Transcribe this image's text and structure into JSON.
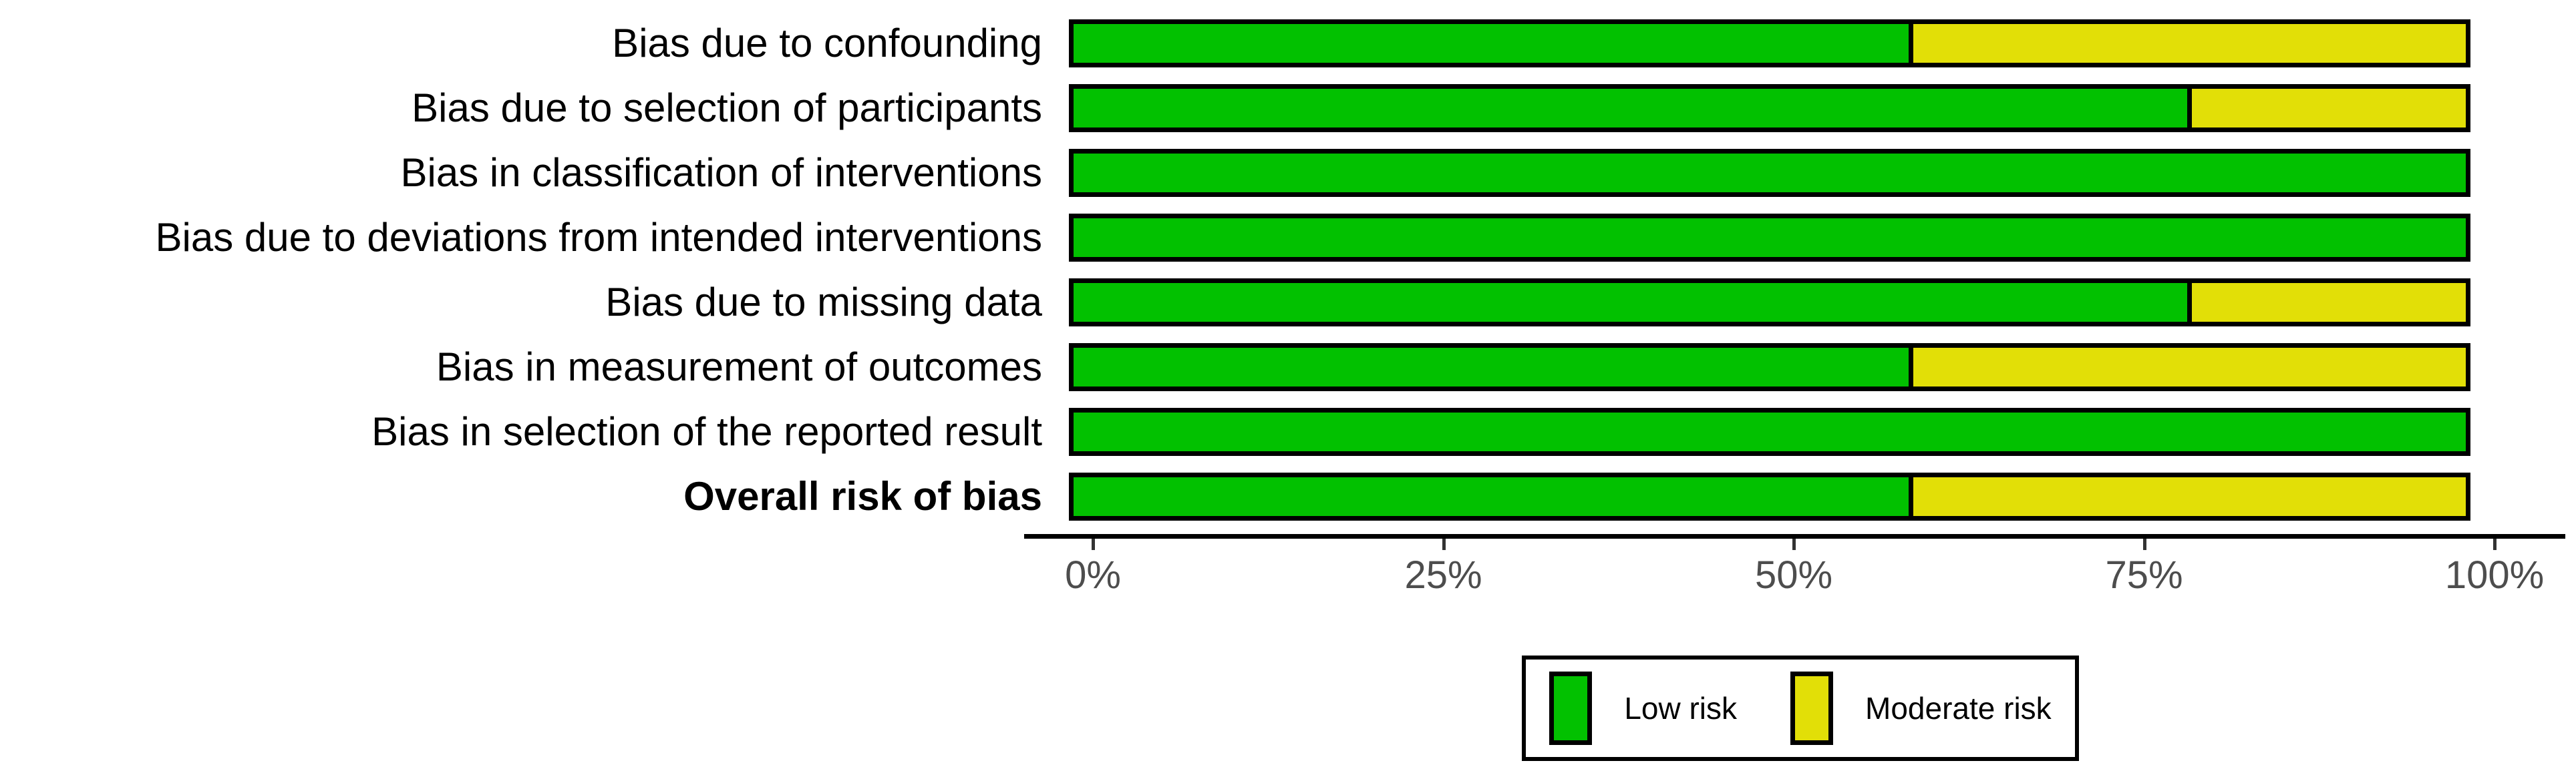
{
  "figure": {
    "background_color": "#FFFFFF",
    "axis_line_color": "#000000",
    "tick_mark_color": "#333333",
    "tick_label_color": "#4D4D4D",
    "bar_border_color": "#000000"
  },
  "chart_data": {
    "type": "bar",
    "stacked": true,
    "orientation": "horizontal",
    "title": "",
    "xlabel": "",
    "ylabel": "",
    "grid": false,
    "categories": [
      {
        "label": "Bias due to confounding",
        "bold": false
      },
      {
        "label": "Bias due to selection of participants",
        "bold": false
      },
      {
        "label": "Bias in classification of interventions",
        "bold": false
      },
      {
        "label": "Bias due to deviations from intended interventions",
        "bold": false
      },
      {
        "label": "Bias due to missing data",
        "bold": false
      },
      {
        "label": "Bias in measurement of outcomes",
        "bold": false
      },
      {
        "label": "Bias in selection of the reported result",
        "bold": false
      },
      {
        "label": "Overall risk of bias",
        "bold": true
      }
    ],
    "series": [
      {
        "name": "Low risk",
        "color": "#02C100",
        "values": [
          60,
          80,
          100,
          100,
          80,
          60,
          100,
          60
        ]
      },
      {
        "name": "Moderate risk",
        "color": "#E2DF07",
        "values": [
          40,
          20,
          0,
          0,
          20,
          40,
          0,
          40
        ]
      }
    ],
    "x_axis": {
      "range": [
        0,
        100
      ],
      "ticks": [
        {
          "value": 0,
          "label": "0%"
        },
        {
          "value": 25,
          "label": "25%"
        },
        {
          "value": 50,
          "label": "50%"
        },
        {
          "value": 75,
          "label": "75%"
        },
        {
          "value": 100,
          "label": "100%"
        }
      ]
    },
    "legend": {
      "position": "bottom-center",
      "entries": [
        {
          "label": "Low risk",
          "color": "#02C100"
        },
        {
          "label": "Moderate risk",
          "color": "#E2DF07"
        }
      ]
    }
  }
}
